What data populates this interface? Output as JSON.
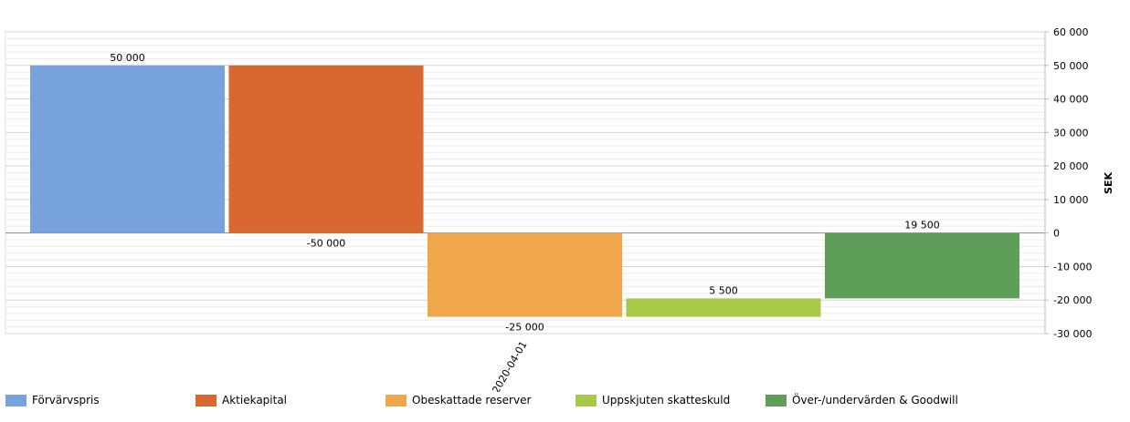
{
  "chart_data": {
    "type": "bar",
    "categories": [
      "2020-04-01"
    ],
    "ylabel": "SEK",
    "ylim": [
      -30000,
      60000
    ],
    "y_ticks": [
      60000,
      50000,
      40000,
      30000,
      20000,
      10000,
      0,
      -10000,
      -20000,
      -30000
    ],
    "y_tick_labels": [
      "60 000",
      "50 000",
      "40 000",
      "30 000",
      "20 000",
      "10 000",
      "0",
      "-10 000",
      "-20 000",
      "-30 000"
    ],
    "grid": true,
    "y_axis_position": "right",
    "legend_position": "bottom",
    "series": [
      {
        "name": "Förvärvspris",
        "color": "#78a2dc",
        "from": 0,
        "to": 50000,
        "label": "50 000"
      },
      {
        "name": "Aktiekapital",
        "color": "#d96730",
        "from": 50000,
        "to": 0,
        "label": "-50 000"
      },
      {
        "name": "Obeskattade reserver",
        "color": "#f0a74b",
        "from": 0,
        "to": -25000,
        "label": "-25 000"
      },
      {
        "name": "Uppskjuten skatteskuld",
        "color": "#a8c84a",
        "from": -25000,
        "to": -19500,
        "label": "5 500"
      },
      {
        "name": "Över-/undervärden & Goodwill",
        "color": "#5f9e59",
        "from": -19500,
        "to": 0,
        "label": "19 500"
      }
    ]
  }
}
